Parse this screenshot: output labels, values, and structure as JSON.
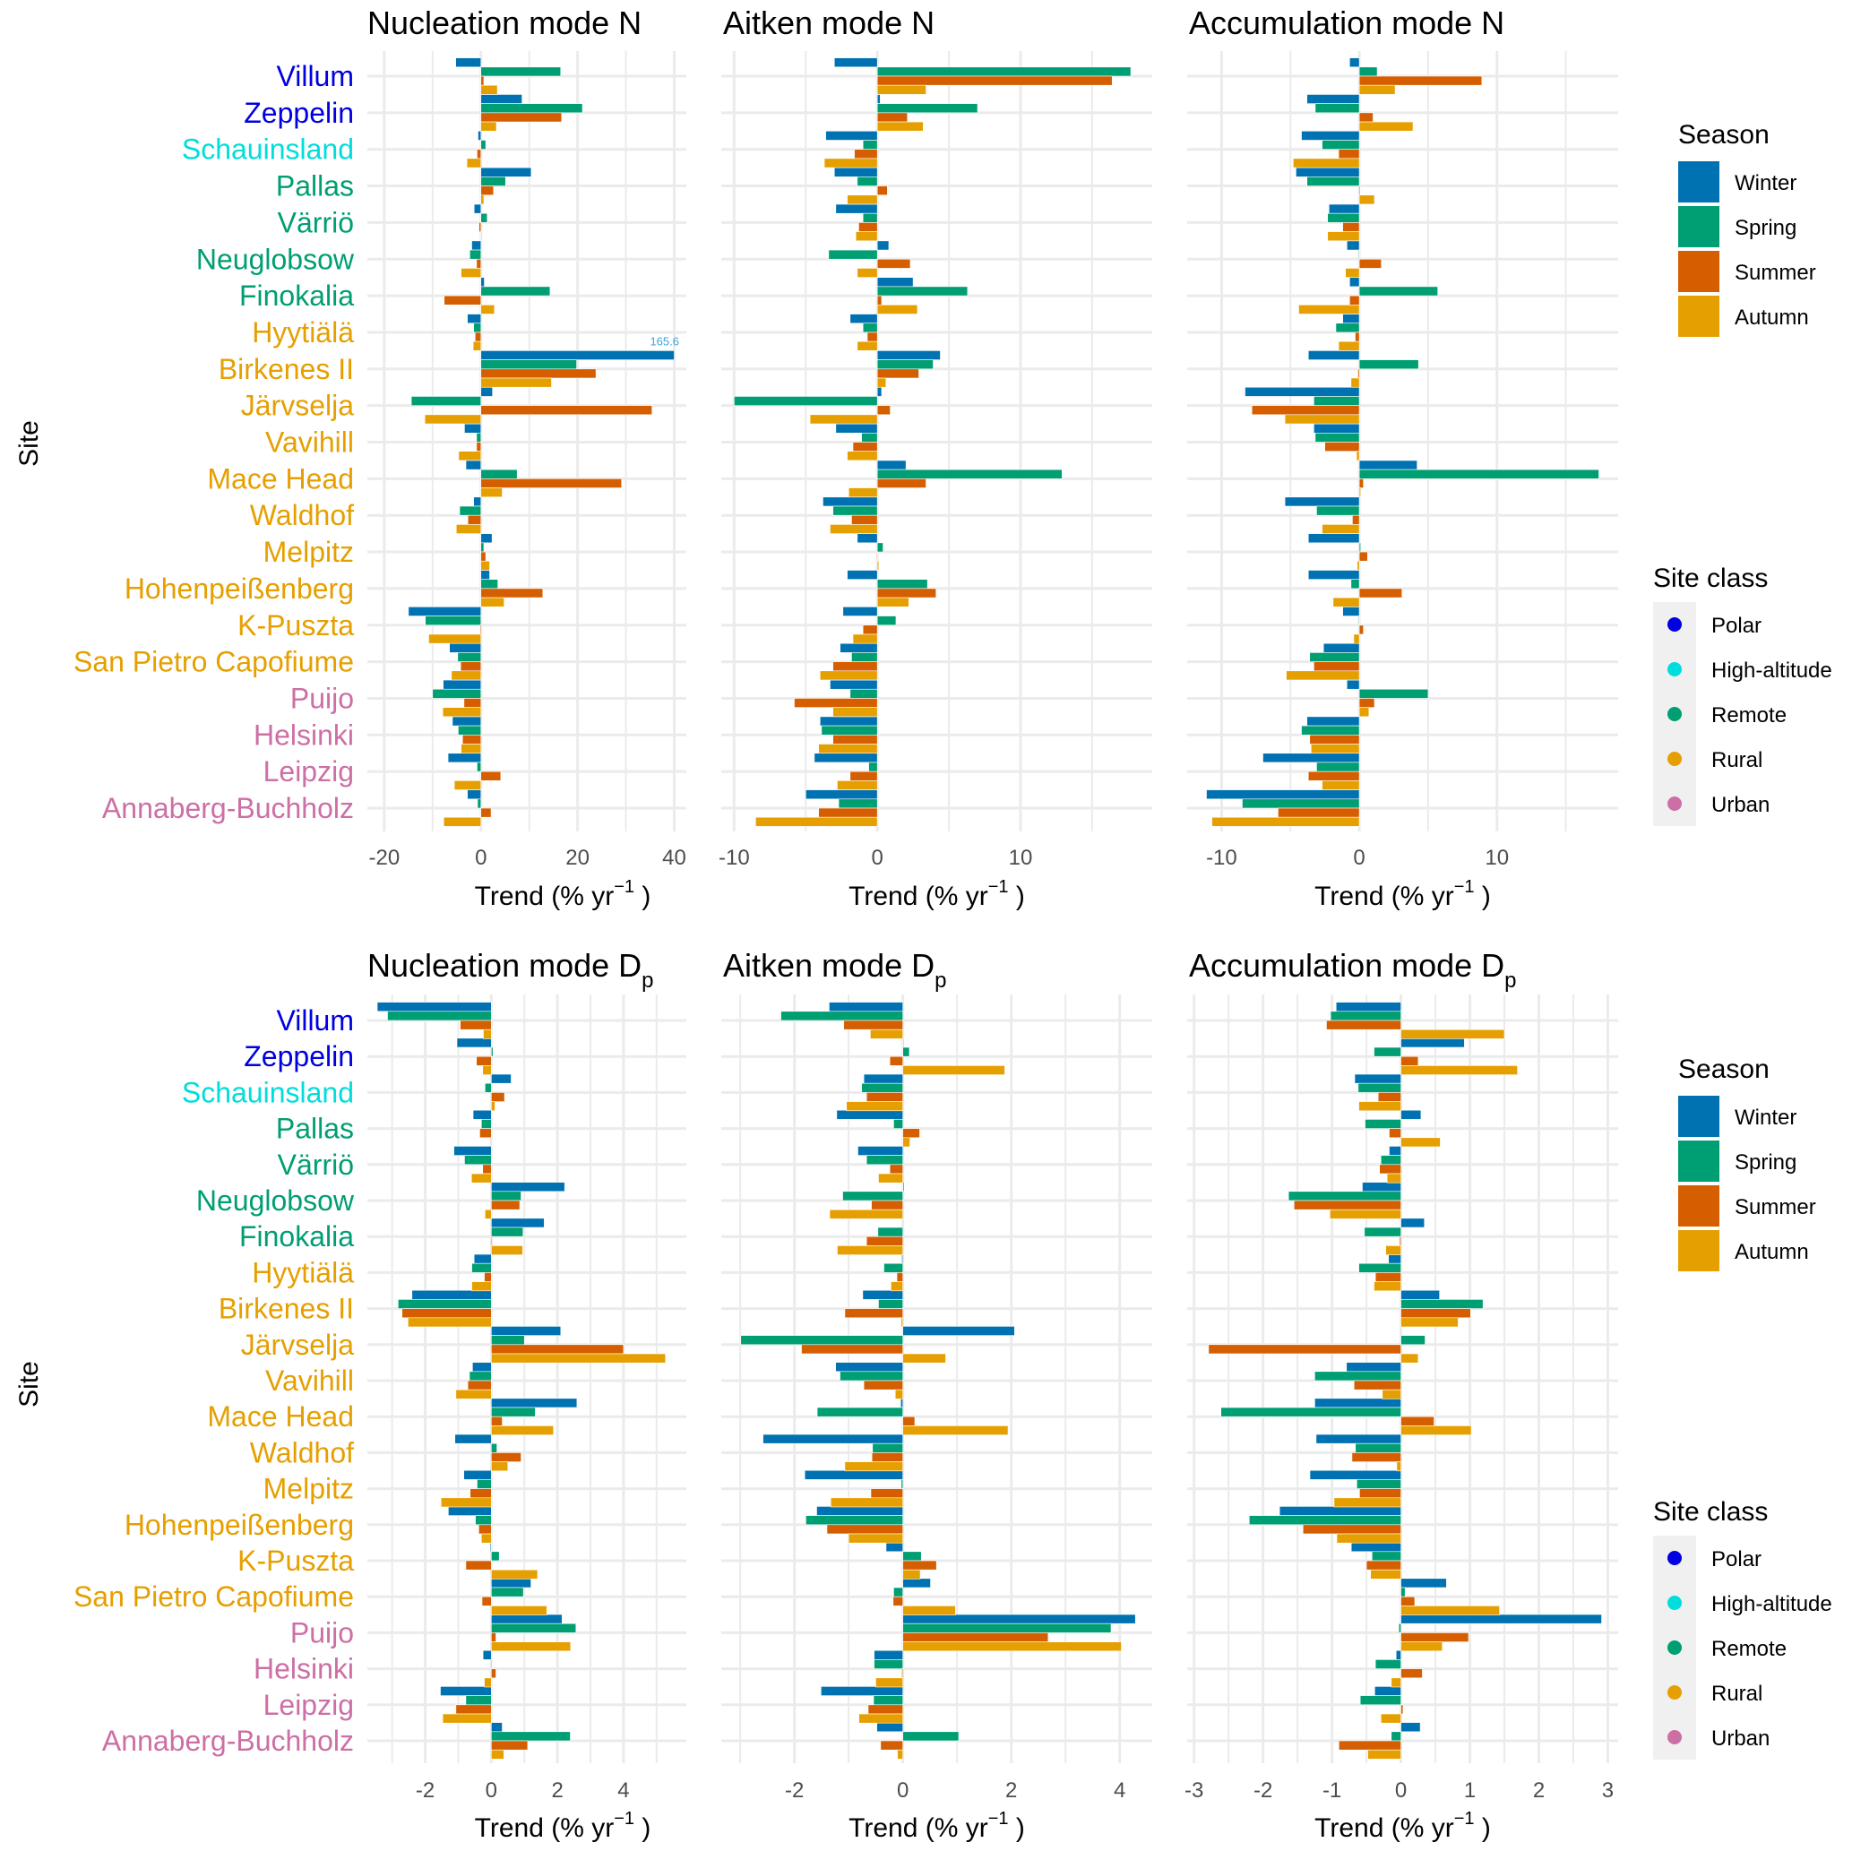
{
  "chart_data": {
    "type": "bar",
    "orientation": "horizontal",
    "ylabel": "Site",
    "xlabel": "Trend (% yr⁻¹ )",
    "categories": [
      "Villum",
      "Zeppelin",
      "Schauinsland",
      "Pallas",
      "Värriö",
      "Neuglobsow",
      "Finokalia",
      "Hyytiälä",
      "Birkenes II",
      "Järvselja",
      "Vavihill",
      "Mace Head",
      "Waldhof",
      "Melpitz",
      "Hohenpeißenberg",
      "K-Puszta",
      "San Pietro Capofiume",
      "Puijo",
      "Helsinki",
      "Leipzig",
      "Annaberg-Buchholz"
    ],
    "category_class": [
      "Polar",
      "Polar",
      "High-altitude",
      "Remote",
      "Remote",
      "Remote",
      "Remote",
      "Rural",
      "Rural",
      "Rural",
      "Rural",
      "Rural",
      "Rural",
      "Rural",
      "Rural",
      "Rural",
      "Rural",
      "Urban",
      "Urban",
      "Urban",
      "Urban"
    ],
    "seasons": [
      "Winter",
      "Spring",
      "Summer",
      "Autumn"
    ],
    "season_colors": {
      "Winter": "#0072B2",
      "Spring": "#009E73",
      "Summer": "#D55E00",
      "Autumn": "#E69F00"
    },
    "site_classes": [
      "Polar",
      "High-altitude",
      "Remote",
      "Rural",
      "Urban"
    ],
    "site_class_colors": {
      "Polar": "#0000E0",
      "High-altitude": "#00DDDD",
      "Remote": "#009E73",
      "Rural": "#E69F00",
      "Urban": "#CC6FA5"
    },
    "panels": [
      {
        "id": "nucleation-n",
        "title": "Nucleation mode N",
        "title_sub": "",
        "xlim": [
          -23.5,
          42.5
        ],
        "major_ticks": [
          -20,
          0,
          20,
          40
        ],
        "minor_ticks": [
          -10,
          10,
          30
        ],
        "annotation": {
          "text": "165.6",
          "site": "Birkenes II",
          "season": "Winter"
        },
        "series": [
          {
            "name": "Winter",
            "values": [
              -5.2,
              8.5,
              -0.6,
              10.4,
              -1.4,
              -1.9,
              0.7,
              -2.8,
              40.0,
              2.4,
              -3.4,
              -3.1,
              -1.5,
              2.3,
              1.8,
              -15.0,
              -6.5,
              -7.8,
              -5.9,
              -6.8,
              -2.8
            ]
          },
          {
            "name": "Spring",
            "values": [
              16.5,
              21.0,
              1.0,
              5.1,
              1.3,
              -2.3,
              14.3,
              -1.5,
              19.8,
              -14.4,
              -0.9,
              7.5,
              -4.4,
              0.6,
              3.5,
              -11.5,
              -4.8,
              -10.0,
              -4.7,
              -0.8,
              -0.7
            ]
          },
          {
            "name": "Summer",
            "values": [
              0.6,
              16.7,
              -0.8,
              2.6,
              -0.4,
              -0.9,
              -7.6,
              -1.2,
              23.8,
              35.4,
              -0.9,
              29.1,
              -2.7,
              1.0,
              12.8,
              -0.2,
              -4.2,
              -3.5,
              -3.8,
              4.1,
              2.1
            ]
          },
          {
            "name": "Autumn",
            "values": [
              3.4,
              3.2,
              -2.9,
              0.6,
              0.0,
              -4.1,
              2.8,
              -1.6,
              14.6,
              -11.6,
              -4.6,
              4.4,
              -5.1,
              1.8,
              4.8,
              -10.8,
              -6.1,
              -7.9,
              -4.1,
              -5.5,
              -7.7
            ]
          }
        ]
      },
      {
        "id": "aitken-n",
        "title": "Aitken mode N",
        "title_sub": "",
        "xlim": [
          -10.9,
          19.2
        ],
        "major_ticks": [
          -10,
          0,
          10
        ],
        "minor_ticks": [
          -5,
          5,
          15
        ],
        "series": [
          {
            "name": "Winter",
            "values": [
              -3.0,
              0.2,
              -3.6,
              -3.0,
              -2.9,
              0.8,
              2.5,
              -1.9,
              4.4,
              0.3,
              -2.9,
              2.0,
              -3.8,
              -1.4,
              -2.1,
              -2.4,
              -2.6,
              -3.3,
              -4.0,
              -4.4,
              -5.0
            ]
          },
          {
            "name": "Spring",
            "values": [
              17.7,
              7.0,
              -1.0,
              -1.4,
              -1.0,
              -3.4,
              6.3,
              -1.0,
              3.9,
              -10.0,
              -1.1,
              12.9,
              -3.1,
              0.4,
              3.5,
              1.3,
              -1.8,
              -1.9,
              -3.9,
              -0.6,
              -2.7
            ]
          },
          {
            "name": "Summer",
            "values": [
              16.4,
              2.1,
              -1.6,
              0.7,
              -1.3,
              2.3,
              0.3,
              -0.7,
              2.9,
              0.9,
              -1.7,
              3.4,
              -1.8,
              -0.04,
              4.1,
              -1.0,
              -3.1,
              -5.8,
              -3.1,
              -1.9,
              -4.1
            ]
          },
          {
            "name": "Autumn",
            "values": [
              3.4,
              3.2,
              -3.7,
              -2.1,
              -1.5,
              -1.4,
              2.8,
              -1.4,
              0.6,
              -4.7,
              -2.1,
              -2.0,
              -3.3,
              0.1,
              2.2,
              -1.7,
              -4.0,
              -3.1,
              -4.1,
              -2.8,
              -8.5
            ]
          }
        ]
      },
      {
        "id": "accumulation-n",
        "title": "Accumulation mode N",
        "title_sub": "",
        "xlim": [
          -12.5,
          18.8
        ],
        "major_ticks": [
          -10,
          0,
          10
        ],
        "minor_ticks": [
          -5,
          5,
          15
        ],
        "series": [
          {
            "name": "Winter",
            "values": [
              -0.7,
              -3.8,
              -4.2,
              -4.6,
              -2.2,
              -0.9,
              -0.7,
              -1.2,
              -3.7,
              -8.3,
              -3.3,
              4.2,
              -5.4,
              -3.7,
              -3.7,
              -1.2,
              -2.6,
              -0.9,
              -3.8,
              -7.0,
              -11.1
            ]
          },
          {
            "name": "Spring",
            "values": [
              1.3,
              -3.2,
              -2.7,
              -3.8,
              -2.3,
              -0.04,
              5.7,
              -1.7,
              4.3,
              -3.3,
              -3.2,
              17.4,
              -3.1,
              0.1,
              -0.6,
              -0.04,
              -3.6,
              5.0,
              -4.2,
              -3.1,
              -8.5
            ]
          },
          {
            "name": "Summer",
            "values": [
              8.9,
              1.0,
              -1.5,
              0.07,
              -1.2,
              1.6,
              -0.7,
              -0.3,
              -0.1,
              -7.8,
              -2.5,
              0.3,
              -0.5,
              0.6,
              3.1,
              0.3,
              -3.3,
              1.1,
              -3.6,
              -3.7,
              -5.9
            ]
          },
          {
            "name": "Autumn",
            "values": [
              2.6,
              3.9,
              -4.8,
              1.1,
              -2.3,
              -1.0,
              -4.4,
              -1.5,
              -0.6,
              -5.4,
              -0.2,
              0.1,
              -2.7,
              -0.15,
              -1.9,
              -0.4,
              -5.3,
              0.7,
              -3.5,
              -2.7,
              -10.7
            ]
          }
        ]
      },
      {
        "id": "nucleation-dp",
        "title": "Nucleation mode D",
        "title_sub": "p",
        "xlim": [
          -3.75,
          5.9
        ],
        "major_ticks": [
          -2,
          0,
          2,
          4
        ],
        "minor_ticks": [
          -3,
          -1,
          1,
          3,
          5
        ],
        "series": [
          {
            "name": "Winter",
            "values": [
              -3.45,
              -1.04,
              0.6,
              -0.55,
              -1.13,
              2.22,
              1.6,
              -0.52,
              -2.4,
              2.1,
              -0.57,
              2.59,
              -1.1,
              -0.83,
              -1.3,
              -0.03,
              1.2,
              2.14,
              -0.25,
              -1.54,
              0.33
            ]
          },
          {
            "name": "Spring",
            "values": [
              -3.14,
              0.05,
              -0.19,
              -0.3,
              -0.81,
              0.9,
              0.96,
              -0.59,
              -2.82,
              1.0,
              -0.66,
              1.33,
              0.17,
              -0.43,
              -0.48,
              0.24,
              0.97,
              2.56,
              0.0,
              -0.77,
              2.39
            ]
          },
          {
            "name": "Summer",
            "values": [
              -0.94,
              -0.45,
              0.4,
              -0.35,
              -0.26,
              0.86,
              0.03,
              -0.21,
              -2.7,
              4.0,
              -0.71,
              0.33,
              0.9,
              -0.64,
              -0.38,
              -0.77,
              -0.28,
              0.14,
              0.14,
              -1.07,
              1.1
            ]
          },
          {
            "name": "Autumn",
            "values": [
              -0.24,
              -0.26,
              0.11,
              0.0,
              -0.6,
              -0.19,
              0.95,
              -0.59,
              -2.52,
              5.27,
              -1.07,
              1.88,
              0.5,
              -1.52,
              -0.3,
              1.4,
              1.68,
              2.4,
              -0.21,
              -1.47,
              0.38
            ]
          }
        ]
      },
      {
        "id": "aitken-dp",
        "title": "Aitken mode D",
        "title_sub": "p",
        "xlim": [
          -3.35,
          4.6
        ],
        "major_ticks": [
          -2,
          0,
          2,
          4
        ],
        "minor_ticks": [
          -3,
          -1,
          1,
          3
        ],
        "series": [
          {
            "name": "Winter",
            "values": [
              -1.36,
              0.0,
              -0.72,
              -1.22,
              -0.83,
              0.02,
              -0.01,
              -0.02,
              -0.74,
              2.06,
              -1.24,
              -0.04,
              -2.58,
              -1.81,
              -1.59,
              -0.31,
              0.51,
              4.29,
              -0.53,
              -1.51,
              -0.48
            ]
          },
          {
            "name": "Spring",
            "values": [
              -2.25,
              0.12,
              -0.76,
              -0.17,
              -0.67,
              -1.11,
              -0.46,
              -0.35,
              -0.45,
              -2.99,
              -1.16,
              -1.58,
              -0.56,
              -0.03,
              -1.79,
              0.34,
              -0.17,
              3.84,
              -0.53,
              -0.54,
              1.03
            ]
          },
          {
            "name": "Summer",
            "values": [
              -1.09,
              -0.24,
              -0.67,
              0.31,
              -0.24,
              -0.58,
              -0.67,
              -0.11,
              -1.07,
              -1.87,
              -0.72,
              0.22,
              -0.57,
              -0.59,
              -1.4,
              0.62,
              -0.18,
              2.68,
              -0.02,
              -0.64,
              -0.41
            ]
          },
          {
            "name": "Autumn",
            "values": [
              -0.6,
              1.88,
              -1.04,
              0.13,
              -0.45,
              -1.35,
              -1.21,
              -0.22,
              -0.03,
              0.79,
              -0.14,
              1.94,
              -1.07,
              -1.33,
              -1.0,
              0.32,
              0.97,
              4.03,
              -0.5,
              -0.81,
              -0.1
            ]
          }
        ]
      },
      {
        "id": "accumulation-dp",
        "title": "Accumulation mode D",
        "title_sub": "p",
        "xlim": [
          -3.1,
          3.15
        ],
        "major_ticks": [
          -3,
          -2,
          -1,
          0,
          1,
          2,
          3
        ],
        "minor_ticks": [
          -2.5,
          -1.5,
          -0.5,
          0.5,
          1.5,
          2.5
        ],
        "series": [
          {
            "name": "Winter",
            "values": [
              -0.94,
              0.92,
              -0.67,
              0.29,
              -0.17,
              -0.56,
              0.34,
              -0.18,
              0.56,
              0.0,
              -0.79,
              -1.25,
              -1.23,
              -1.32,
              -1.76,
              -0.72,
              0.66,
              2.91,
              -0.07,
              -0.38,
              0.28
            ]
          },
          {
            "name": "Spring",
            "values": [
              -1.02,
              -0.39,
              -0.62,
              -0.52,
              -0.29,
              -1.63,
              -0.53,
              -0.61,
              1.19,
              0.35,
              -1.25,
              -2.61,
              -0.66,
              -0.64,
              -2.2,
              -0.42,
              0.06,
              -0.03,
              -0.37,
              -0.59,
              -0.14
            ]
          },
          {
            "name": "Summer",
            "values": [
              -1.08,
              0.25,
              -0.33,
              -0.17,
              -0.31,
              -1.55,
              -0.02,
              -0.37,
              1.01,
              -2.79,
              -0.68,
              0.48,
              -0.71,
              -0.6,
              -1.42,
              -0.5,
              0.2,
              0.98,
              0.31,
              0.03,
              -0.9
            ]
          },
          {
            "name": "Autumn",
            "values": [
              1.5,
              1.69,
              -0.61,
              0.57,
              -0.2,
              -1.03,
              -0.22,
              -0.39,
              0.83,
              0.25,
              -0.27,
              1.02,
              -0.06,
              -0.97,
              -0.93,
              -0.44,
              1.43,
              0.6,
              -0.14,
              -0.29,
              -0.48
            ]
          }
        ]
      }
    ]
  },
  "legends": {
    "season_title": "Season",
    "site_class_title": "Site class"
  },
  "axis": {
    "y_title": "Site",
    "x_title_main": "Trend (% yr",
    "x_title_sup": "−1",
    "x_title_end": " )"
  }
}
